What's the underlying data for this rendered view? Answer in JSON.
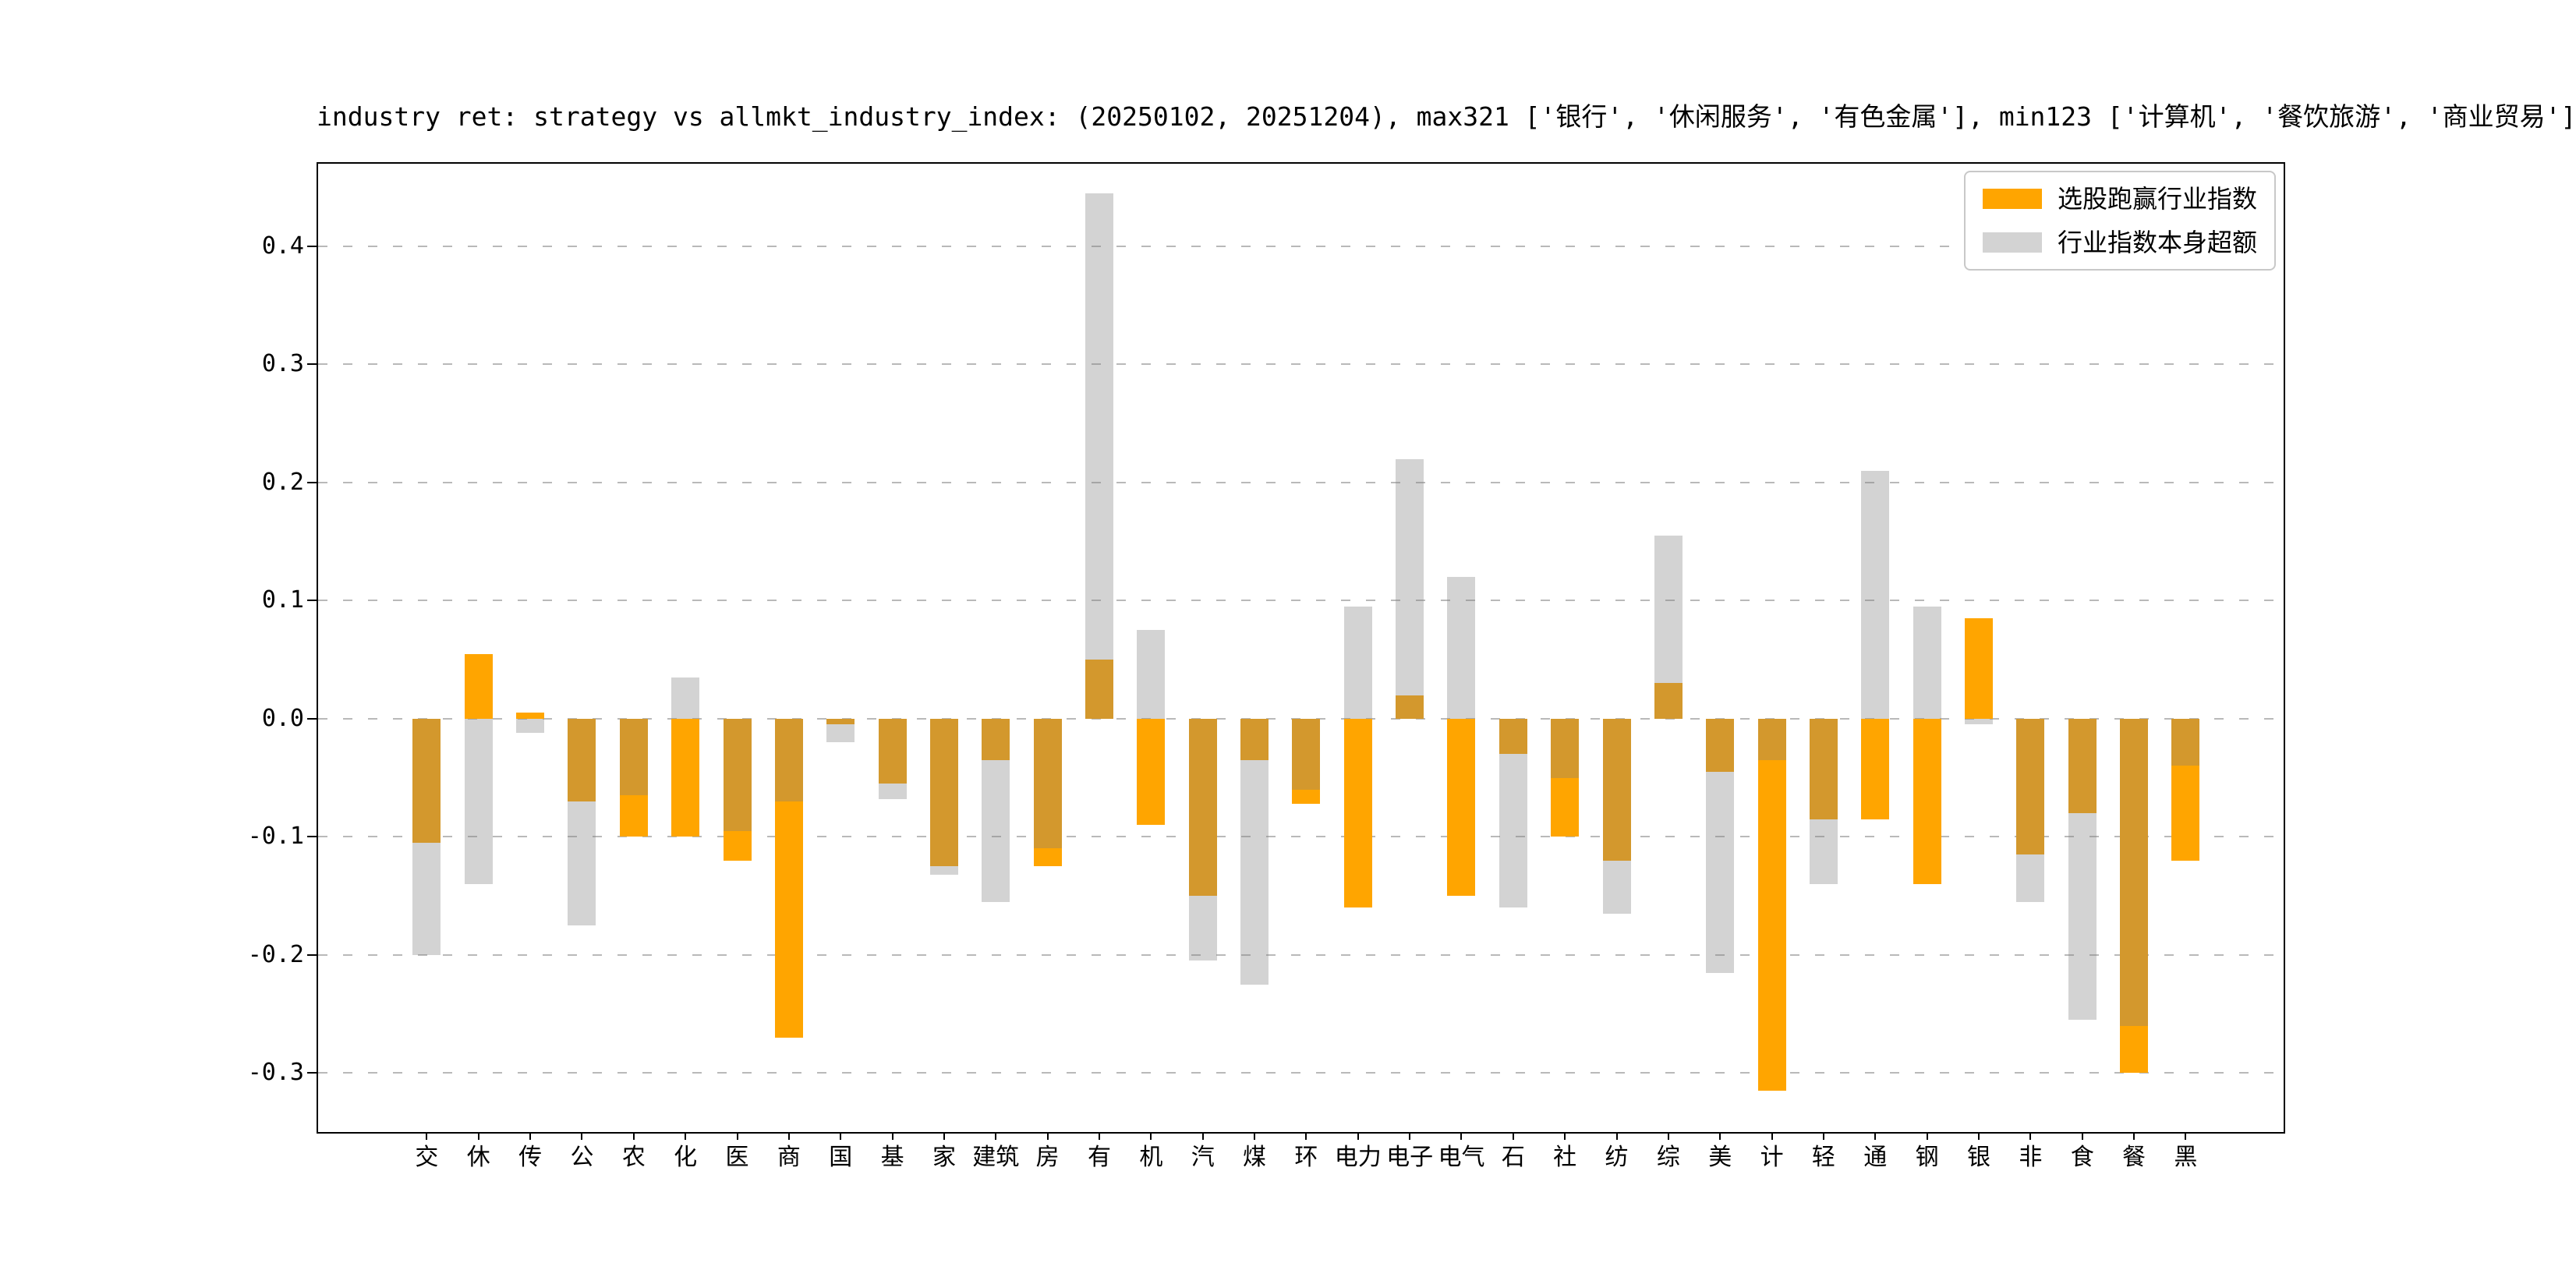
{
  "title": "industry ret: strategy vs allmkt_industry_index: (20250102, 20251204), max321 ['银行', '休闲服务', '有色金属'], min123 ['计算机', '餐饮旅游', '商业贸易']",
  "legend": [
    {
      "label": "选股跑赢行业指数",
      "color": "#FFA500"
    },
    {
      "label": "行业指数本身超额",
      "color": "rgba(128,128,128,0.35)"
    }
  ],
  "chart_data": {
    "type": "bar",
    "title": "industry ret: strategy vs allmkt_industry_index: (20250102, 20251204), max321 ['银行', '休闲服务', '有色金属'], min123 ['计算机', '餐饮旅游', '商业贸易']",
    "xlabel": "",
    "ylabel": "",
    "categories": [
      "交",
      "休",
      "传",
      "公",
      "农",
      "化",
      "医",
      "商",
      "国",
      "基",
      "家",
      "建筑",
      "房",
      "有",
      "机",
      "汽",
      "煤",
      "环",
      "电力",
      "电子",
      "电气",
      "石",
      "社",
      "纺",
      "综",
      "美",
      "计",
      "轻",
      "通",
      "钢",
      "银",
      "非",
      "食",
      "餐",
      "黑"
    ],
    "series": [
      {
        "name": "选股跑赢行业指数",
        "color": "#FFA500",
        "values": [
          -0.105,
          0.055,
          0.005,
          -0.07,
          -0.1,
          -0.1,
          -0.12,
          -0.27,
          -0.005,
          -0.055,
          -0.125,
          -0.035,
          -0.125,
          0.05,
          -0.09,
          -0.15,
          -0.035,
          -0.072,
          -0.16,
          0.02,
          -0.15,
          -0.03,
          -0.1,
          -0.12,
          0.03,
          -0.045,
          -0.315,
          -0.085,
          -0.085,
          -0.14,
          0.085,
          -0.115,
          -0.08,
          -0.3,
          -0.12
        ]
      },
      {
        "name": "行业指数本身超额",
        "color": "rgba(128,128,128,0.35)",
        "values": [
          -0.2,
          -0.14,
          -0.012,
          -0.175,
          -0.065,
          0.035,
          -0.095,
          -0.07,
          -0.02,
          -0.068,
          -0.132,
          -0.155,
          -0.11,
          0.445,
          0.075,
          -0.205,
          -0.225,
          -0.06,
          0.095,
          0.22,
          0.12,
          -0.16,
          -0.05,
          -0.165,
          0.155,
          -0.215,
          -0.035,
          -0.14,
          0.21,
          0.095,
          -0.005,
          -0.155,
          -0.255,
          -0.26,
          -0.04
        ]
      }
    ],
    "ylim": [
      -0.35,
      0.47
    ],
    "yticks": [
      0.4,
      0.3,
      0.2,
      0.1,
      0.0,
      -0.1,
      -0.2,
      -0.3
    ],
    "grid": "horizontal-dashed",
    "legend_position": "upper right"
  }
}
